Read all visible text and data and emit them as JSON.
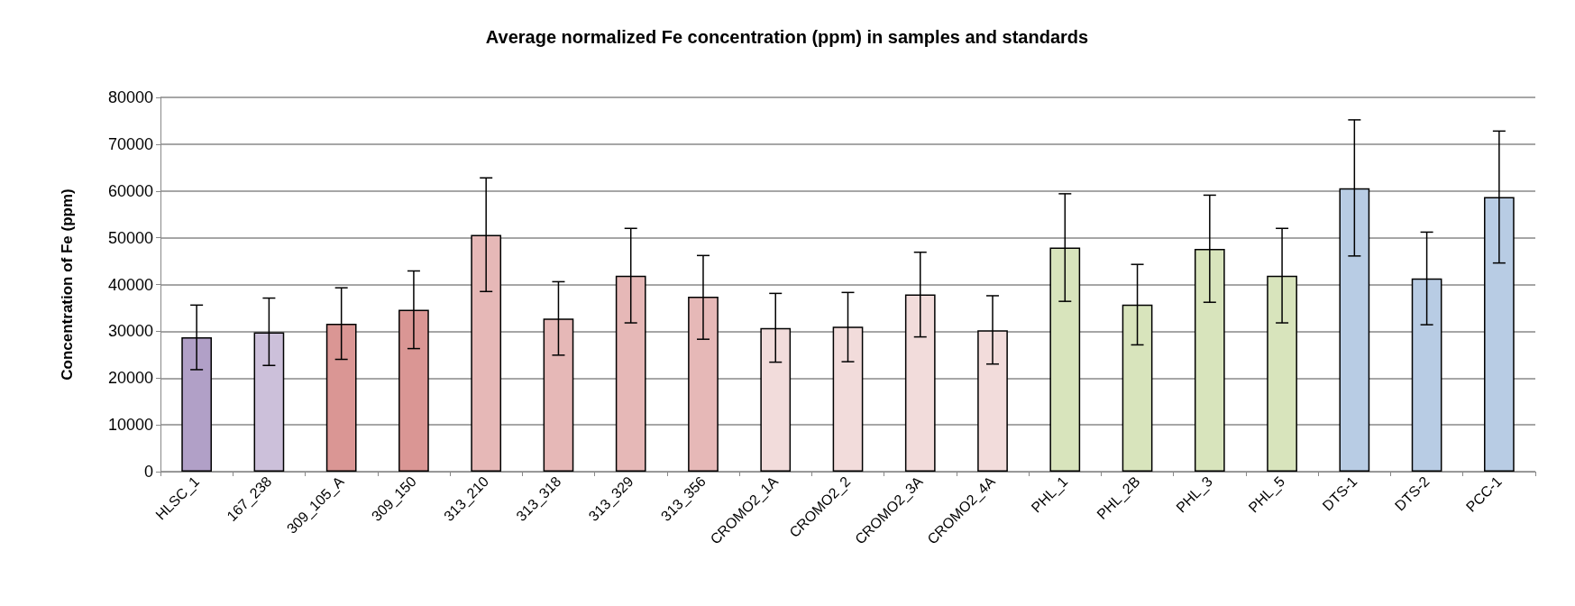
{
  "chart_data": {
    "type": "bar",
    "title": "Average normalized Fe concentration (ppm) in samples and standards",
    "ylabel": "Concentration of Fe (ppm)",
    "categories": [
      "HLSC_1",
      "167_238",
      "309_105_A",
      "309_150",
      "313_210",
      "313_318",
      "313_329",
      "313_356",
      "CROMO2_1A",
      "CROMO2_2",
      "CROMO2_3A",
      "CROMO2_4A",
      "PHL_1",
      "PHL_2B",
      "PHL_3",
      "PHL_5",
      "DTS-1",
      "DTS-2",
      "PCC-1"
    ],
    "values": [
      28700,
      29800,
      31600,
      34600,
      50600,
      32700,
      41900,
      37400,
      30700,
      31000,
      37900,
      30200,
      47900,
      35700,
      47600,
      41900,
      60600,
      41300,
      58700
    ],
    "errors": [
      [
        21800,
        35600
      ],
      [
        22700,
        37100
      ],
      [
        24000,
        39300
      ],
      [
        26300,
        42900
      ],
      [
        38500,
        62800
      ],
      [
        24900,
        40600
      ],
      [
        31800,
        52000
      ],
      [
        28300,
        46200
      ],
      [
        23400,
        38100
      ],
      [
        23500,
        38300
      ],
      [
        28800,
        46900
      ],
      [
        23000,
        37600
      ],
      [
        36400,
        59400
      ],
      [
        27100,
        44300
      ],
      [
        36200,
        59100
      ],
      [
        31800,
        52000
      ],
      [
        46100,
        75200
      ],
      [
        31400,
        51200
      ],
      [
        44600,
        72800
      ]
    ],
    "colors": [
      "#b1a0c7",
      "#ccc0da",
      "#da9694",
      "#da9694",
      "#e6b8b7",
      "#e6b8b7",
      "#e6b8b7",
      "#e6b8b7",
      "#f2dcdb",
      "#f2dcdb",
      "#f2dcdb",
      "#f2dcdb",
      "#d8e4bc",
      "#d8e4bc",
      "#d8e4bc",
      "#d8e4bc",
      "#b8cce4",
      "#b8cce4",
      "#b8cce4"
    ],
    "ylim": [
      0,
      80000
    ],
    "yticks": [
      0,
      10000,
      20000,
      30000,
      40000,
      50000,
      60000,
      70000,
      80000
    ],
    "grid": "y"
  }
}
